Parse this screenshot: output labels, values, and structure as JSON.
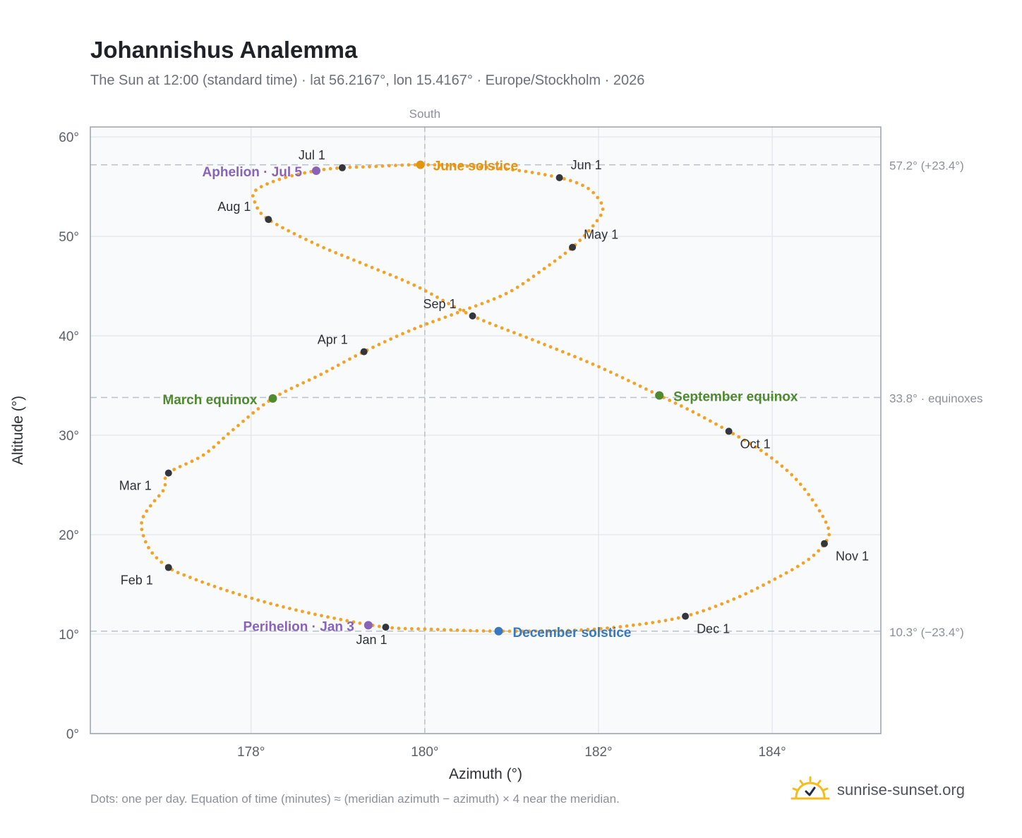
{
  "title": "Johannishus Analemma",
  "subtitle": "The Sun at 12:00 (standard time) · lat 56.2167°, lon 15.4167° · Europe/Stockholm · 2026",
  "footnote": "Dots: one per day. Equation of time (minutes) ≈ (meridian azimuth − azimuth) × 4 near the meridian.",
  "brand": "sunrise-sunset.org",
  "colors": {
    "path": "#f2a326",
    "month_marker": "#33363d",
    "solstice_june": "#e39410",
    "solstice_december": "#3878bf",
    "equinox": "#4f8a2e",
    "apsis": "#8a63b8",
    "plot_bg": "#f8fafc",
    "grid": "#e5e9ee",
    "reference_line": "#b9c1ca"
  },
  "chart_data": {
    "type": "scatter",
    "xlabel": "Azimuth (°)",
    "ylabel": "Altitude (°)",
    "xlim": [
      176.15,
      185.25
    ],
    "ylim": [
      0,
      61
    ],
    "xticks": [
      178,
      180,
      182,
      184
    ],
    "yticks": [
      0,
      10,
      20,
      30,
      40,
      50,
      60
    ],
    "xtick_labels": [
      "178°",
      "180°",
      "182°",
      "184°"
    ],
    "ytick_labels": [
      "0°",
      "10°",
      "20°",
      "30°",
      "40°",
      "50°",
      "60°"
    ],
    "grid": true,
    "meridian": {
      "x": 180,
      "label": "South"
    },
    "reference_lines": [
      {
        "y": 57.2,
        "label": "57.2° (+23.4°)"
      },
      {
        "y": 33.8,
        "label": "33.8° · equinoxes"
      },
      {
        "y": 10.3,
        "label": "10.3° (−23.4°)"
      }
    ],
    "series": [
      {
        "name": "daily",
        "points": [
          [
            179.55,
            10.7
          ],
          [
            178.9,
            11.7
          ],
          [
            178.3,
            12.9
          ],
          [
            177.75,
            14.3
          ],
          [
            177.3,
            15.7
          ],
          [
            177.05,
            16.7
          ],
          [
            176.85,
            18.3
          ],
          [
            176.75,
            20.2
          ],
          [
            176.75,
            21.6
          ],
          [
            176.85,
            23.0
          ],
          [
            177.0,
            24.6
          ],
          [
            177.05,
            26.2
          ],
          [
            177.45,
            28.0
          ],
          [
            177.8,
            30.6
          ],
          [
            178.25,
            33.7
          ],
          [
            178.8,
            36.1
          ],
          [
            179.3,
            38.4
          ],
          [
            179.85,
            40.6
          ],
          [
            180.4,
            42.4
          ],
          [
            180.95,
            44.3
          ],
          [
            181.35,
            46.6
          ],
          [
            181.7,
            48.9
          ],
          [
            181.95,
            51.2
          ],
          [
            182.05,
            52.8
          ],
          [
            181.95,
            54.3
          ],
          [
            181.8,
            55.2
          ],
          [
            181.55,
            55.9
          ],
          [
            181.1,
            56.6
          ],
          [
            180.6,
            57.0
          ],
          [
            179.95,
            57.2
          ],
          [
            179.35,
            57.0
          ],
          [
            179.05,
            56.9
          ],
          [
            178.75,
            56.6
          ],
          [
            178.35,
            55.8
          ],
          [
            178.05,
            54.6
          ],
          [
            178.05,
            53.3
          ],
          [
            178.2,
            51.7
          ],
          [
            178.75,
            49.2
          ],
          [
            179.3,
            47.2
          ],
          [
            179.9,
            45.0
          ],
          [
            180.55,
            42.0
          ],
          [
            181.3,
            39.4
          ],
          [
            182.0,
            36.9
          ],
          [
            182.7,
            34.0
          ],
          [
            183.1,
            32.3
          ],
          [
            183.5,
            30.4
          ],
          [
            183.9,
            28.3
          ],
          [
            184.25,
            25.8
          ],
          [
            184.5,
            23.0
          ],
          [
            184.65,
            20.5
          ],
          [
            184.6,
            19.1
          ],
          [
            184.4,
            17.4
          ],
          [
            184.0,
            15.4
          ],
          [
            183.55,
            13.5
          ],
          [
            183.0,
            11.8
          ],
          [
            182.4,
            10.9
          ],
          [
            181.75,
            10.4
          ],
          [
            180.85,
            10.3
          ],
          [
            180.05,
            10.5
          ],
          [
            179.55,
            10.7
          ]
        ]
      }
    ],
    "month_markers": [
      {
        "label": "Jan 1",
        "x": 179.55,
        "y": 10.7
      },
      {
        "label": "Feb 1",
        "x": 177.05,
        "y": 16.7
      },
      {
        "label": "Mar 1",
        "x": 177.05,
        "y": 26.2
      },
      {
        "label": "Apr 1",
        "x": 179.3,
        "y": 38.4
      },
      {
        "label": "May 1",
        "x": 181.7,
        "y": 48.9
      },
      {
        "label": "Jun 1",
        "x": 181.55,
        "y": 55.9
      },
      {
        "label": "Jul 1",
        "x": 179.05,
        "y": 56.9
      },
      {
        "label": "Aug 1",
        "x": 178.2,
        "y": 51.7
      },
      {
        "label": "Sep 1",
        "x": 180.55,
        "y": 42.0
      },
      {
        "label": "Oct 1",
        "x": 183.5,
        "y": 30.4
      },
      {
        "label": "Nov 1",
        "x": 184.6,
        "y": 19.1
      },
      {
        "label": "Dec 1",
        "x": 183.0,
        "y": 11.8
      }
    ],
    "events": [
      {
        "label": "June solstice",
        "x": 179.95,
        "y": 57.2,
        "color_key": "solstice_june"
      },
      {
        "label": "December solstice",
        "x": 180.85,
        "y": 10.3,
        "color_key": "solstice_december"
      },
      {
        "label": "March equinox",
        "x": 178.25,
        "y": 33.7,
        "color_key": "equinox"
      },
      {
        "label": "September equinox",
        "x": 182.7,
        "y": 34.0,
        "color_key": "equinox"
      },
      {
        "label": "Aphelion · Jul 5",
        "x": 178.75,
        "y": 56.6,
        "color_key": "apsis"
      },
      {
        "label": "Perihelion · Jan 3",
        "x": 179.35,
        "y": 10.9,
        "color_key": "apsis"
      }
    ]
  }
}
